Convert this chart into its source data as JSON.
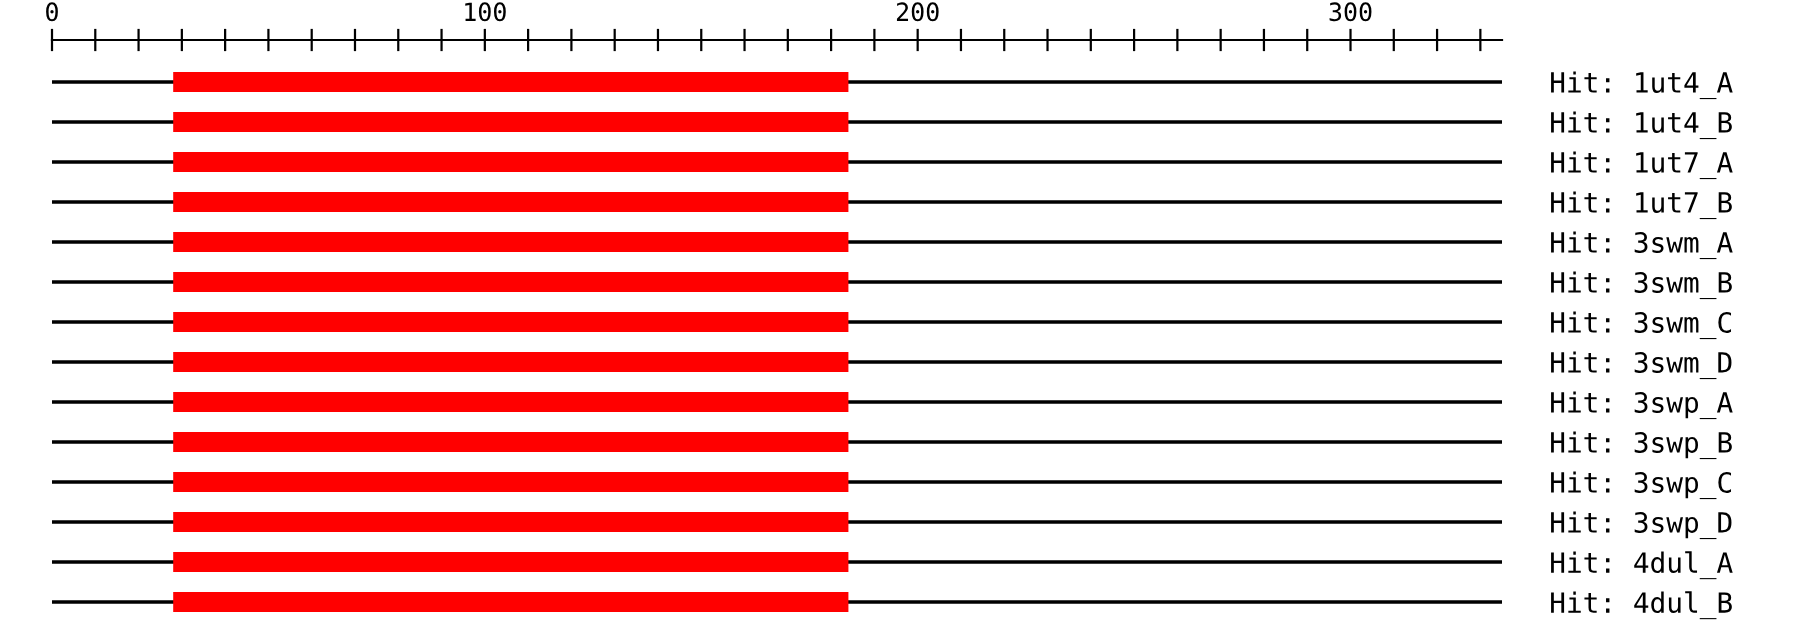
{
  "chart_data": {
    "type": "bar",
    "orientation": "horizontal",
    "grid": "y",
    "color": "#ff0000",
    "categories": [
      "Hit: 1ut4_A",
      "Hit: 1ut4_B",
      "Hit: 1ut7_A",
      "Hit: 1ut7_B",
      "Hit: 3swm_A",
      "Hit: 3swm_B",
      "Hit: 3swm_C",
      "Hit: 3swm_D",
      "Hit: 3swp_A",
      "Hit: 3swp_B",
      "Hit: 3swp_C",
      "Hit: 3swp_D",
      "Hit: 4dul_A",
      "Hit: 4dul_B"
    ],
    "base": [
      28,
      28,
      28,
      28,
      28,
      28,
      28,
      28,
      28,
      28,
      28,
      28,
      28,
      28
    ],
    "values": [
      156,
      156,
      156,
      156,
      156,
      156,
      156,
      156,
      156,
      156,
      156,
      156,
      156,
      156
    ],
    "xlim": [
      0,
      335
    ],
    "xticks": [
      0,
      {
        "value": 10,
        "label": null
      },
      {
        "value": 20,
        "label": null
      },
      {
        "value": 30,
        "label": null
      },
      {
        "value": 40,
        "label": null
      },
      {
        "value": 50,
        "label": null
      },
      {
        "value": 60,
        "label": null
      },
      {
        "value": 70,
        "label": null
      },
      {
        "value": 80,
        "label": null
      },
      {
        "value": 90,
        "label": null
      },
      100,
      {
        "value": 110,
        "label": null
      },
      {
        "value": 120,
        "label": null
      },
      {
        "value": 130,
        "label": null
      },
      {
        "value": 140,
        "label": null
      },
      {
        "value": 150,
        "label": null
      },
      {
        "value": 160,
        "label": null
      },
      {
        "value": 170,
        "label": null
      },
      {
        "value": 180,
        "label": null
      },
      {
        "value": 190,
        "label": null
      },
      200,
      {
        "value": 210,
        "label": null
      },
      {
        "value": 220,
        "label": null
      },
      {
        "value": 230,
        "label": null
      },
      {
        "value": 240,
        "label": null
      },
      {
        "value": 250,
        "label": null
      },
      {
        "value": 260,
        "label": null
      },
      {
        "value": 270,
        "label": null
      },
      {
        "value": 280,
        "label": null
      },
      {
        "value": 290,
        "label": null
      },
      300,
      {
        "value": 310,
        "label": null
      },
      {
        "value": 320,
        "label": null
      },
      {
        "value": 330,
        "label": null
      }
    ]
  }
}
